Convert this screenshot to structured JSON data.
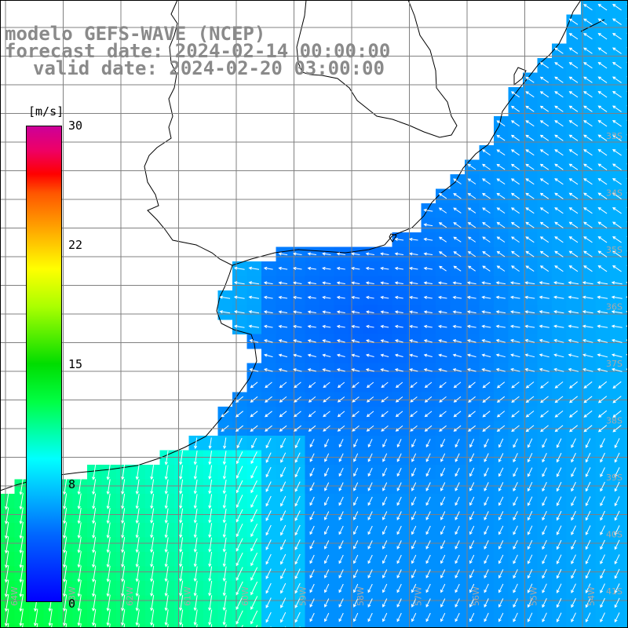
{
  "title": {
    "line1": "modelo GEFS-WAVE (NCEP)",
    "line2": "forecast date: 2024-02-14 00:00:00",
    "line3": "valid date: 2024-02-20 03:00:00"
  },
  "colorbar": {
    "unit": "[m/s]",
    "ticks": [
      "30",
      "22",
      "15",
      "8",
      "0"
    ],
    "tick_values": [
      30,
      22,
      15,
      8,
      0
    ],
    "min": 0,
    "max": 30
  },
  "lat_labels": [
    "33S",
    "34S",
    "35S",
    "36S",
    "37S",
    "38S",
    "39S",
    "40S",
    "41S"
  ],
  "lon_labels": [
    "64W",
    "63W",
    "62W",
    "61W",
    "60W",
    "59W",
    "58W",
    "57W",
    "56W",
    "55W",
    "54W"
  ],
  "colors": {
    "land": "#ffffff",
    "coastline": "#000000",
    "grid": "#808080",
    "arrow": "#ffffff"
  }
}
